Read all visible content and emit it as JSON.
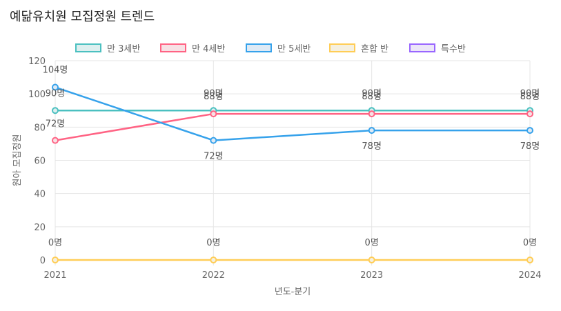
{
  "title": "예닮유치원 모집정원 트렌드",
  "chart_data": {
    "type": "line",
    "title": "예닮유치원 모집정원 트렌드",
    "xlabel": "년도-분기",
    "ylabel": "원아 모집정원",
    "categories": [
      "2021",
      "2022",
      "2023",
      "2024"
    ],
    "ylim": [
      0,
      120
    ],
    "yticks": [
      0,
      20,
      40,
      60,
      80,
      100,
      120
    ],
    "grid": true,
    "legend_position": "top",
    "data_label_suffix": "명",
    "series": [
      {
        "name": "만 3세반",
        "values": [
          90,
          90,
          90,
          90
        ],
        "color": "#4BC0C0",
        "fill": "#DDEFEF"
      },
      {
        "name": "만 4세반",
        "values": [
          72,
          88,
          88,
          88
        ],
        "color": "#FF6384",
        "fill": "#F7E1E5"
      },
      {
        "name": "만 5세반",
        "values": [
          104,
          72,
          78,
          78
        ],
        "color": "#36A2EB",
        "fill": "#DEEAF5"
      },
      {
        "name": "혼합 반",
        "values": [
          0,
          0,
          0,
          0
        ],
        "color": "#FFCD56",
        "fill": "#F5F0E0"
      },
      {
        "name": "특수반",
        "values": [
          null,
          null,
          null,
          null
        ],
        "color": "#9966FF",
        "fill": "#ECE6F8"
      }
    ]
  }
}
